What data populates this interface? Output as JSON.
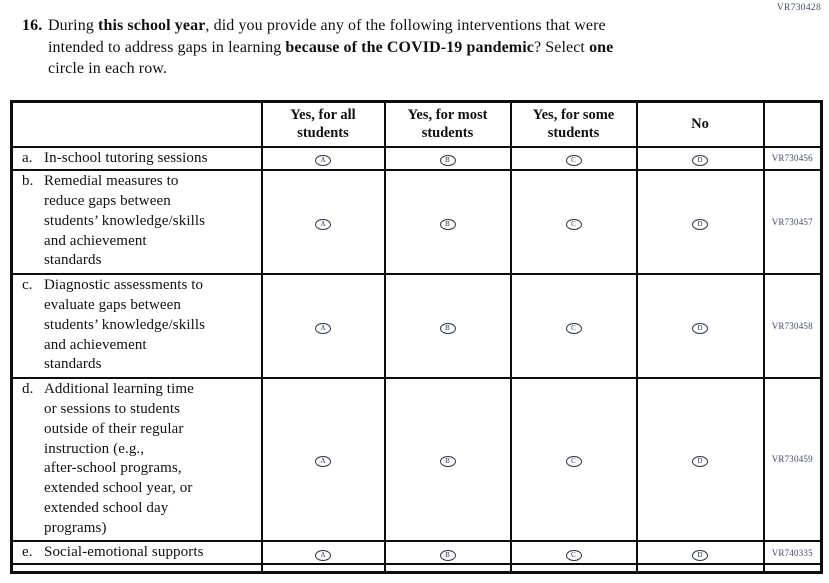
{
  "page_code": "VR730428",
  "question": {
    "number": "16.",
    "lines": [
      [
        {
          "text": "During ",
          "bold": false
        },
        {
          "text": "this school year",
          "bold": true
        },
        {
          "text": ", did you provide any of the following interventions that were",
          "bold": false
        }
      ],
      [
        {
          "text": "intended to address gaps in learning ",
          "bold": false
        },
        {
          "text": "because of the COVID-19 pandemic",
          "bold": true
        },
        {
          "text": "? Select ",
          "bold": false
        },
        {
          "text": "one",
          "bold": true
        }
      ],
      [
        {
          "text": "circle in each row.",
          "bold": false
        }
      ]
    ]
  },
  "table": {
    "columns": [
      "",
      "Yes, for all\nstudents",
      "Yes, for most\nstudents",
      "Yes, for some\nstudents",
      "No",
      ""
    ],
    "options": [
      "A",
      "B",
      "C",
      "D"
    ],
    "rows": [
      {
        "letter": "a.",
        "label": "In-school tutoring sessions",
        "code": "VR730456"
      },
      {
        "letter": "b.",
        "label": "Remedial measures to\nreduce gaps between\nstudents’ knowledge/skills\nand achievement\nstandards",
        "code": "VR730457"
      },
      {
        "letter": "c.",
        "label": "Diagnostic assessments to\nevaluate gaps between\nstudents’ knowledge/skills\nand achievement\nstandards",
        "code": "VR730458"
      },
      {
        "letter": "d.",
        "label": "Additional learning time\nor sessions to students\noutside of their regular\ninstruction (e.g.,\nafter-school programs,\nextended school year, or\nextended school day\nprograms)",
        "code": "VR730459"
      },
      {
        "letter": "e.",
        "label": "Social-emotional supports",
        "code": "VR740335"
      }
    ]
  },
  "colors": {
    "ink": "#111111",
    "code_ink": "#3d4b66",
    "circle_ink": "#2b3550",
    "border": "#0e0e0e"
  }
}
